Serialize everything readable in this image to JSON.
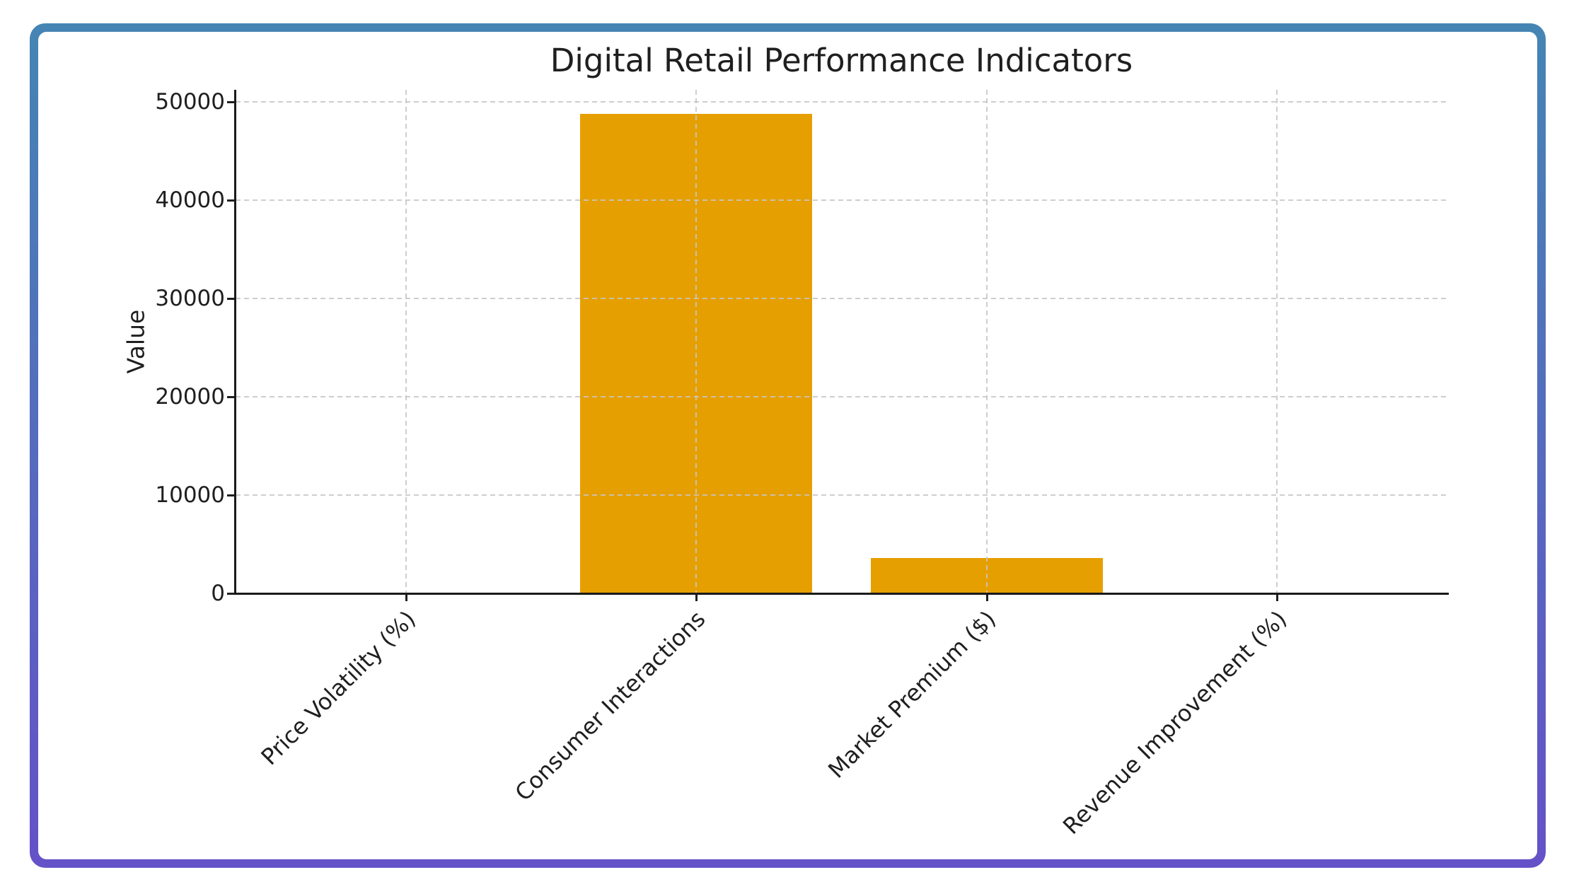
{
  "frame": {
    "border_gradient_top": "#4585B4",
    "border_gradient_bottom": "#6551C8",
    "background": "#ffffff"
  },
  "chart_data": {
    "type": "bar",
    "title": "Digital Retail Performance Indicators",
    "xlabel": "",
    "ylabel": "Value",
    "categories": [
      "Price Volatility (%)",
      "Consumer Interactions",
      "Market Premium ($)",
      "Revenue Improvement (%)"
    ],
    "values": [
      0,
      48800,
      3600,
      0
    ],
    "bar_color": "#E69F00",
    "yticks": [
      0,
      10000,
      20000,
      30000,
      40000,
      50000
    ],
    "ylim": [
      0,
      51200
    ],
    "grid": "dashed, both axes, drawn over bars",
    "gridline_color": "#c6c6c6",
    "axis_color": "#1a1a1a",
    "text_color": "#1f1f1f",
    "legend_position": "none",
    "x_tick_rotation_deg": 45
  }
}
